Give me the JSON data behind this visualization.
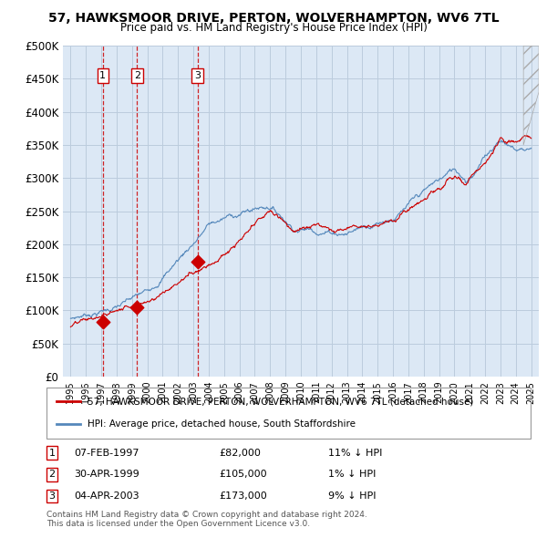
{
  "title": "57, HAWKSMOOR DRIVE, PERTON, WOLVERHAMPTON, WV6 7TL",
  "subtitle": "Price paid vs. HM Land Registry's House Price Index (HPI)",
  "sales": [
    {
      "label": "1",
      "date_num": 1997.1,
      "price": 82000,
      "date_str": "07-FEB-1997",
      "hpi_pct": "11% ↓ HPI"
    },
    {
      "label": "2",
      "date_num": 1999.33,
      "price": 105000,
      "date_str": "30-APR-1999",
      "hpi_pct": "1% ↓ HPI"
    },
    {
      "label": "3",
      "date_num": 2003.27,
      "price": 173000,
      "date_str": "04-APR-2003",
      "hpi_pct": "9% ↓ HPI"
    }
  ],
  "legend_line1": "57, HAWKSMOOR DRIVE, PERTON, WOLVERHAMPTON, WV6 7TL (detached house)",
  "legend_line2": "HPI: Average price, detached house, South Staffordshire",
  "footer1": "Contains HM Land Registry data © Crown copyright and database right 2024.",
  "footer2": "This data is licensed under the Open Government Licence v3.0.",
  "ylim": [
    0,
    500000
  ],
  "xlim": [
    1994.5,
    2025.5
  ],
  "yticks": [
    0,
    50000,
    100000,
    150000,
    200000,
    250000,
    300000,
    350000,
    400000,
    450000,
    500000
  ],
  "xticks": [
    1995,
    1996,
    1997,
    1998,
    1999,
    2000,
    2001,
    2002,
    2003,
    2004,
    2005,
    2006,
    2007,
    2008,
    2009,
    2010,
    2011,
    2012,
    2013,
    2014,
    2015,
    2016,
    2017,
    2018,
    2019,
    2020,
    2021,
    2022,
    2023,
    2024,
    2025
  ],
  "red_line_color": "#cc0000",
  "blue_line_color": "#5588bb",
  "bg_color": "#dce8f5",
  "grid_color": "#bbccdd",
  "sale_dot_color": "#cc0000",
  "vline_color": "#cc0000",
  "prices": [
    82000,
    105000,
    173000
  ]
}
